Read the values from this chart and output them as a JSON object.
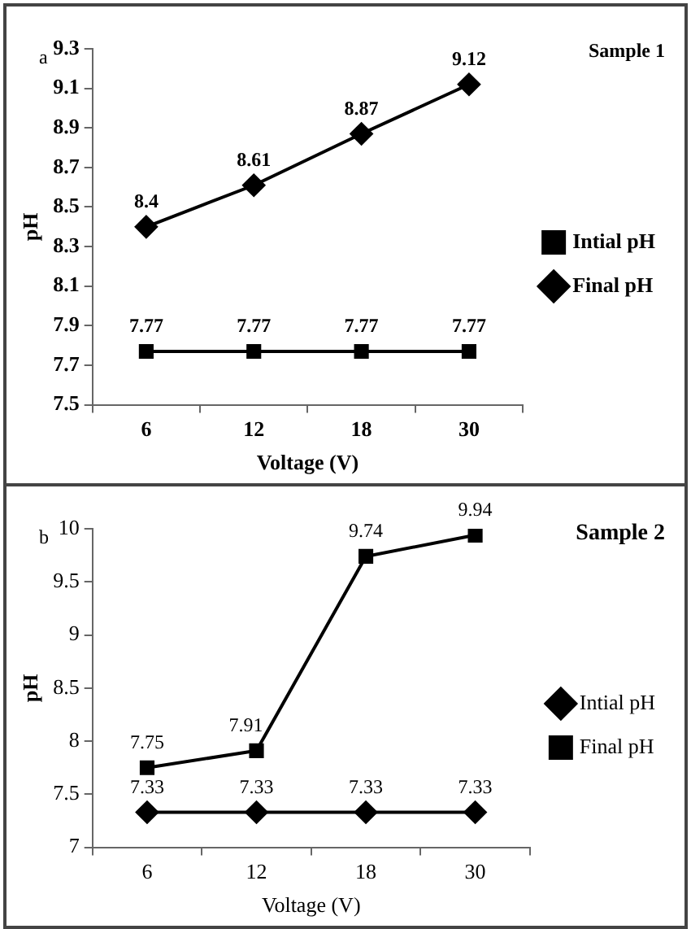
{
  "chart_data": [
    {
      "type": "line",
      "xlabel": "Voltage (V)",
      "ylabel": "pH",
      "annotations": [
        "a",
        "Sample 1"
      ],
      "categories": [
        "6",
        "12",
        "18",
        "30"
      ],
      "series": [
        {
          "name": "Intial pH",
          "color": "#000000",
          "marker": "square",
          "values": [
            7.77,
            7.77,
            7.77,
            7.77
          ]
        },
        {
          "name": "Final pH",
          "color": "#000000",
          "marker": "diamond",
          "values": [
            8.4,
            8.61,
            8.87,
            9.12
          ]
        }
      ],
      "ylim": [
        7.5,
        9.3
      ],
      "yticks": [
        7.5,
        7.7,
        7.9,
        8.1,
        8.3,
        8.5,
        8.7,
        8.9,
        9.1,
        9.3
      ],
      "grid": false,
      "legend": "right",
      "data_labels": true,
      "line_style": "solid"
    },
    {
      "type": "line",
      "xlabel": "Voltage (V)",
      "ylabel": "pH",
      "annotations": [
        "b",
        "Sample 2"
      ],
      "categories": [
        "6",
        "12",
        "18",
        "30"
      ],
      "series": [
        {
          "name": "Intial pH",
          "color": "#000000",
          "marker": "diamond",
          "values": [
            7.33,
            7.33,
            7.33,
            7.33
          ]
        },
        {
          "name": "Final pH",
          "color": "#000000",
          "marker": "square",
          "values": [
            7.75,
            7.91,
            9.74,
            9.94
          ]
        }
      ],
      "ylim": [
        7,
        10
      ],
      "yticks": [
        7,
        7.5,
        8,
        8.5,
        9,
        9.5,
        10
      ],
      "grid": false,
      "legend": "right",
      "data_labels": true,
      "line_style": "solid"
    }
  ]
}
